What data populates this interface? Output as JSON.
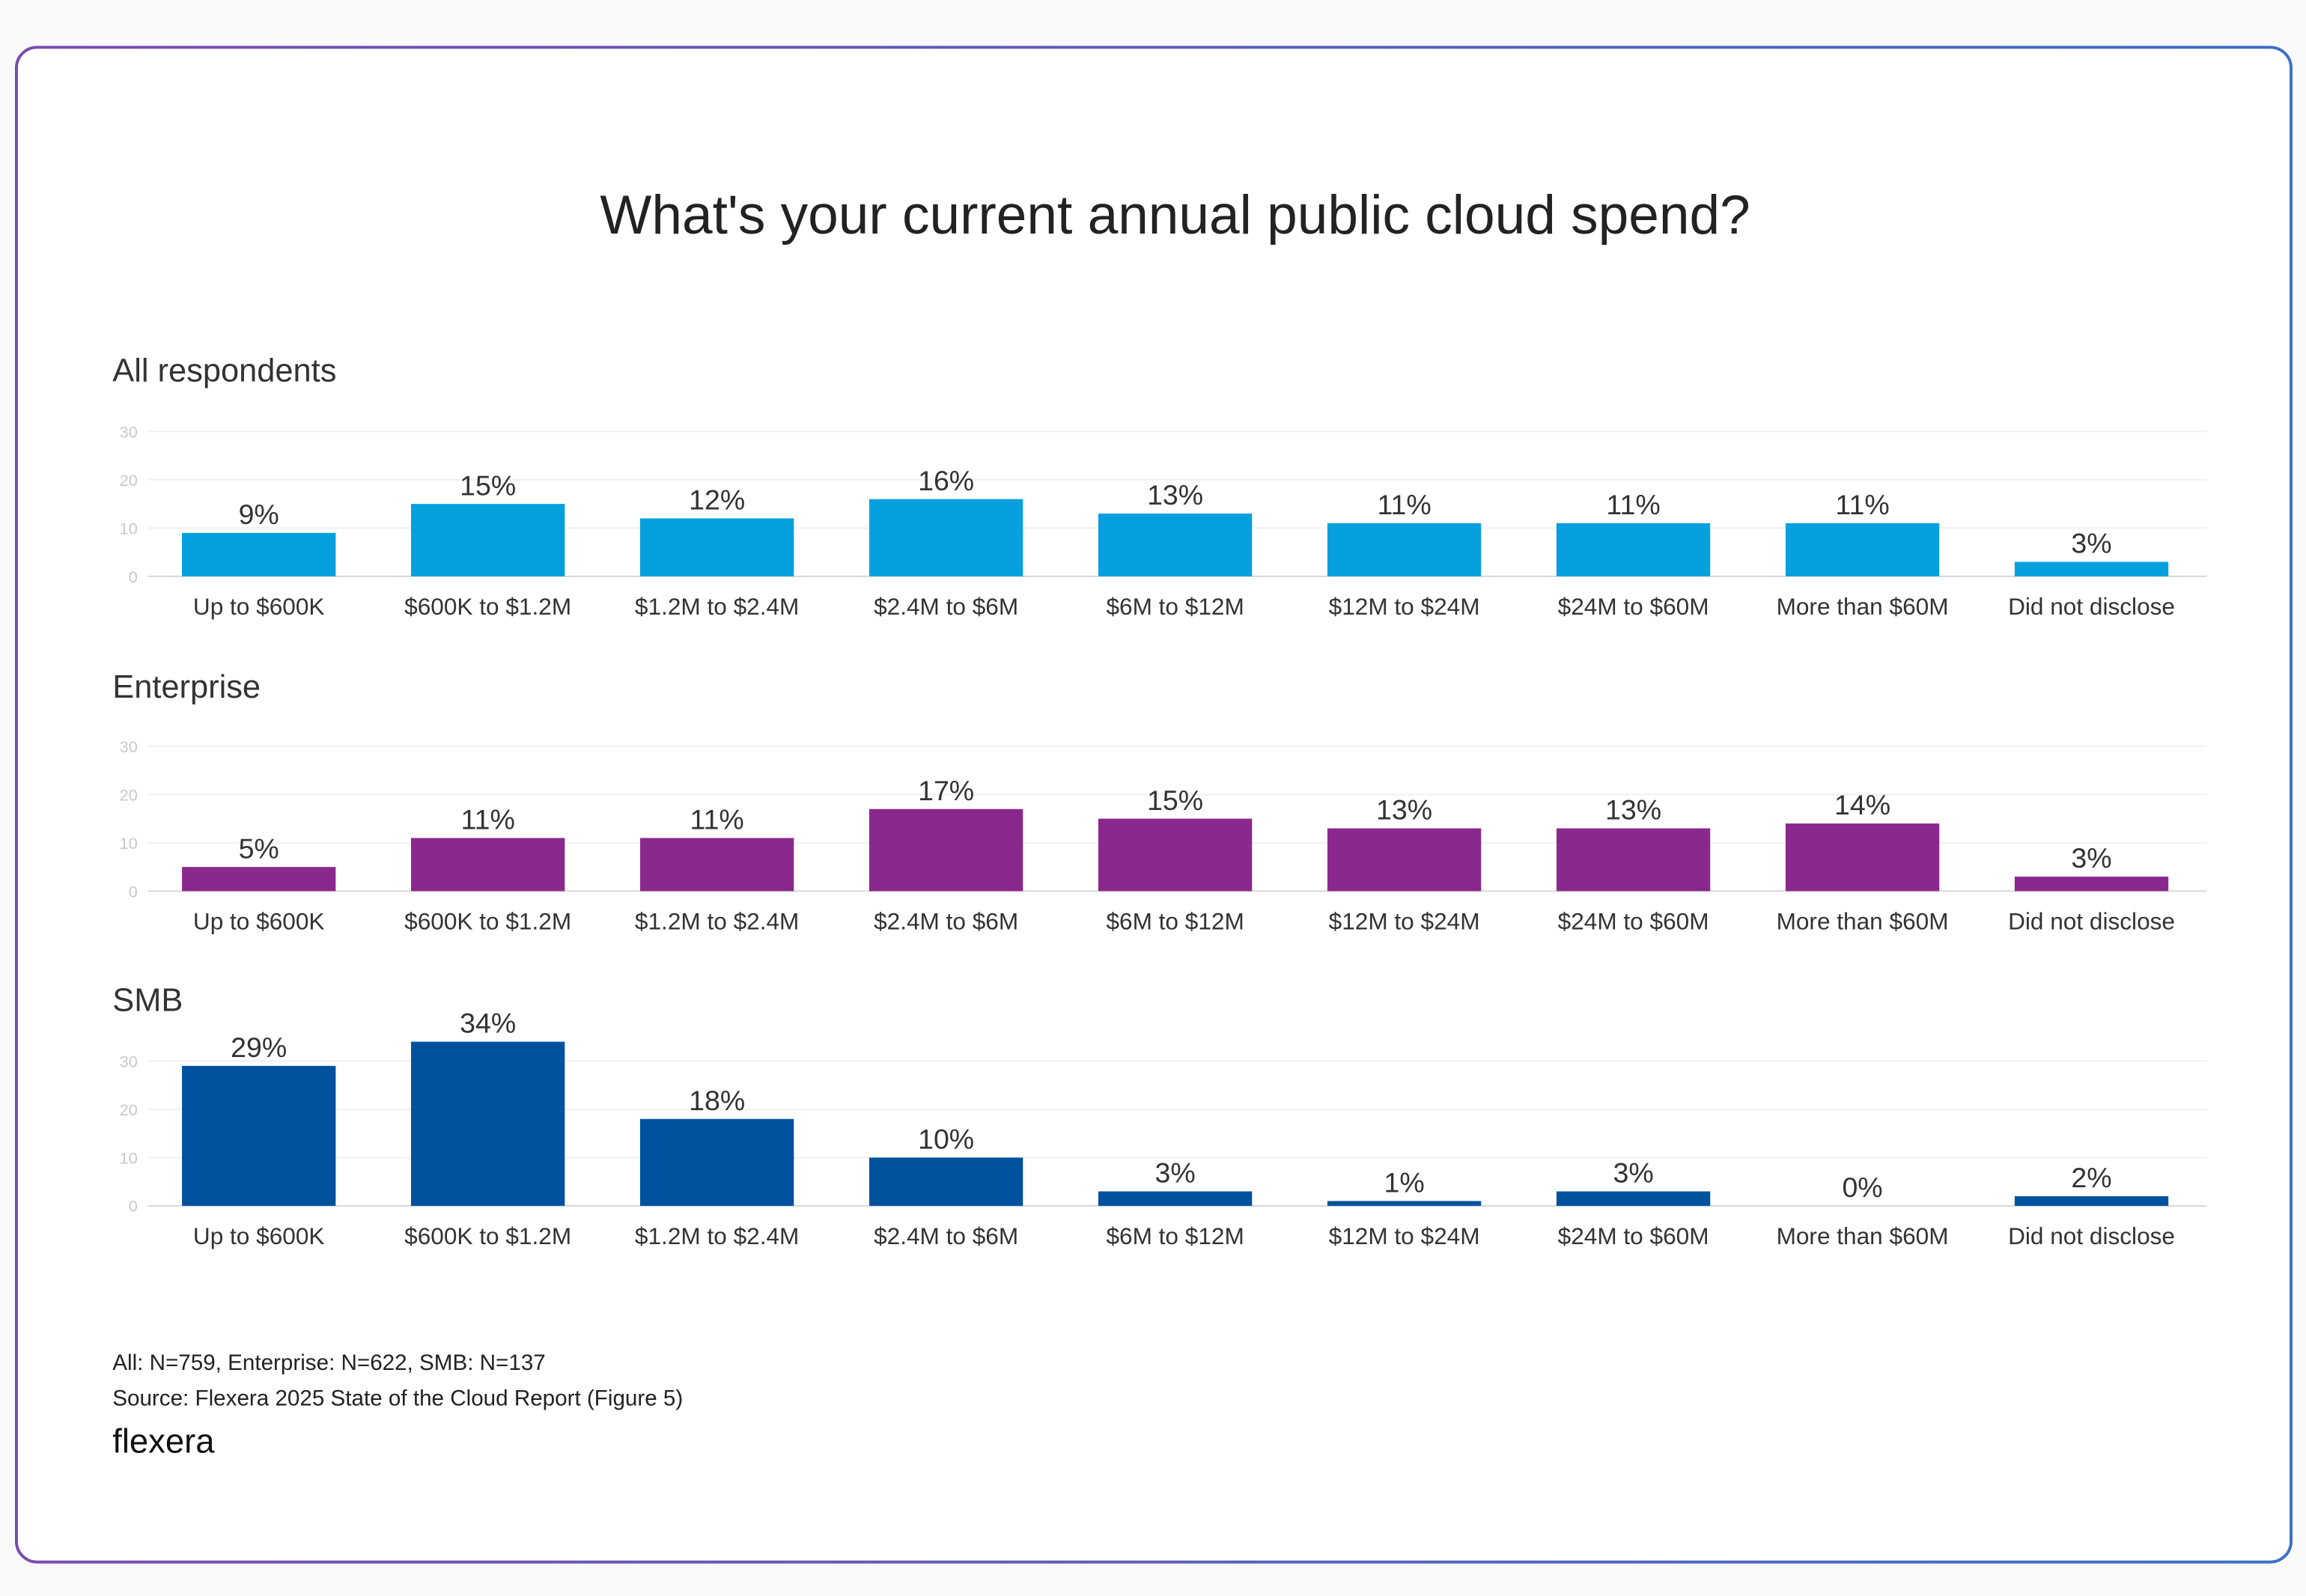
{
  "chart_data": {
    "type": "bar",
    "title": "What's your current annual public cloud spend?",
    "categories": [
      "Up to $600K",
      "$600K to $1.2M",
      "$1.2M to $2.4M",
      "$2.4M to $6M",
      "$6M to $12M",
      "$12M to $24M",
      "$24M to $60M",
      "More than $60M",
      "Did not disclose"
    ],
    "ylim": [
      0,
      30
    ],
    "yticks": [
      0,
      10,
      20,
      30
    ],
    "grid": true,
    "unit": "%",
    "panels": [
      {
        "name": "All respondents",
        "color": "#05a0dd",
        "values": [
          9,
          15,
          12,
          16,
          13,
          11,
          11,
          11,
          3
        ]
      },
      {
        "name": "Enterprise",
        "color": "#8b288d",
        "values": [
          5,
          11,
          11,
          17,
          15,
          13,
          13,
          14,
          3
        ]
      },
      {
        "name": "SMB",
        "color": "#00529e",
        "values": [
          29,
          34,
          18,
          10,
          3,
          1,
          3,
          0,
          2
        ]
      }
    ]
  },
  "footer": {
    "sample_note": "All: N=759, Enterprise: N=622, SMB: N=137",
    "source": "Source: Flexera 2025 State of the Cloud Report (Figure 5)",
    "logo": "flexera"
  }
}
